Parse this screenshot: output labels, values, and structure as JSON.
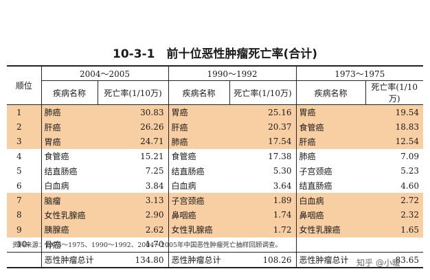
{
  "title": "10-3-1　前十位恶性肿瘤死亡率(合计)",
  "header": {
    "rank_label": "顺位",
    "periods": [
      "2004～2005",
      "1990～1992",
      "1973～1975"
    ],
    "disease_label": "疾病名称",
    "rate_label": "死亡率(1/10万)"
  },
  "rows": [
    {
      "rank": "1",
      "highlight": true,
      "c1": "肺癌",
      "r1": "30.83",
      "c2": "胃癌",
      "r2": "25.16",
      "c3": "胃癌",
      "r3": "19.54"
    },
    {
      "rank": "2",
      "highlight": true,
      "c1": "肝癌",
      "r1": "26.26",
      "c2": "肝癌",
      "r2": "20.37",
      "c3": "食管癌",
      "r3": "18.83"
    },
    {
      "rank": "3",
      "highlight": true,
      "c1": "胃癌",
      "r1": "24.71",
      "c2": "肺癌",
      "r2": "17.54",
      "c3": "肝癌",
      "r3": "12.54"
    },
    {
      "rank": "4",
      "highlight": false,
      "c1": "食管癌",
      "r1": "15.21",
      "c2": "食管癌",
      "r2": "17.38",
      "c3": "肺癌",
      "r3": "7.09"
    },
    {
      "rank": "5",
      "highlight": false,
      "c1": "结直肠癌",
      "r1": "7.25",
      "c2": "结直肠癌",
      "r2": "5.30",
      "c3": "子宫颈癌",
      "r3": "5.23"
    },
    {
      "rank": "6",
      "highlight": false,
      "c1": "白血病",
      "r1": "3.84",
      "c2": "白血病",
      "r2": "3.64",
      "c3": "结直肠癌",
      "r3": "4.60"
    },
    {
      "rank": "7",
      "highlight": true,
      "c1": "脑瘤",
      "r1": "3.13",
      "c2": "子宫颈癌",
      "r2": "1.89",
      "c3": "白血病",
      "r3": "2.72"
    },
    {
      "rank": "8",
      "highlight": true,
      "c1": "女性乳腺癌",
      "r1": "2.90",
      "c2": "鼻咽癌",
      "r2": "1.74",
      "c3": "鼻咽癌",
      "r3": "2.32"
    },
    {
      "rank": "9",
      "highlight": true,
      "c1": "胰腺癌",
      "r1": "2.62",
      "c2": "女性乳腺癌",
      "r2": "1.72",
      "c3": "女性乳腺癌",
      "r3": "1.65"
    },
    {
      "rank": "10",
      "highlight": false,
      "c1": "骨癌",
      "r1": "1.70",
      "c2": "",
      "r2": "",
      "c3": "",
      "r3": ""
    }
  ],
  "total": {
    "label": "恶性肿瘤总计",
    "r1": "134.80",
    "r2": "108.26",
    "r3": "83.65"
  },
  "footnote": "资料来源：1973～1975、1990～1992、2004～2005年中国恶性肿瘤死亡抽样回顾调查。",
  "watermark": "知乎 @小暖",
  "colors": {
    "highlight": "#f7cfa3"
  }
}
